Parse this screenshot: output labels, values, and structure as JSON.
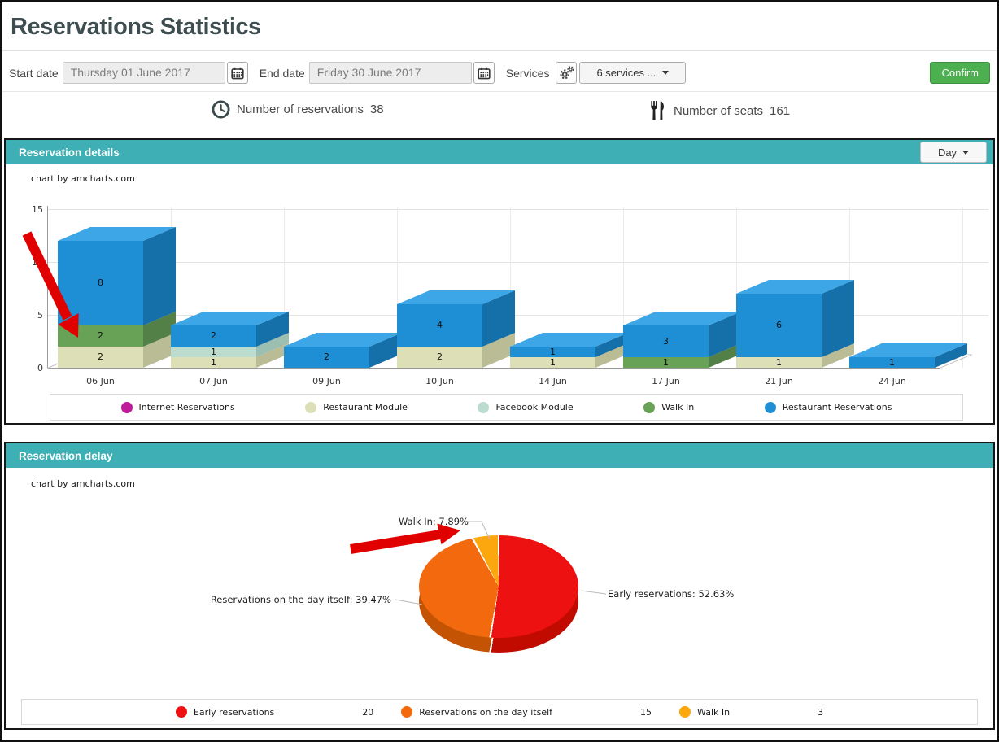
{
  "page": {
    "title": "Reservations Statistics"
  },
  "filters": {
    "start_date": {
      "label": "Start date",
      "value": "Thursday 01 June 2017"
    },
    "end_date": {
      "label": "End date",
      "value": "Friday 30 June 2017"
    },
    "services": {
      "label": "Services",
      "dropdown_value": "6 services ..."
    },
    "confirm_label": "Confirm"
  },
  "stats": {
    "reservations": {
      "label": "Number of reservations",
      "value": "38"
    },
    "seats": {
      "label": "Number of seats",
      "value": "161"
    }
  },
  "panels": {
    "details": {
      "title": "Reservation details",
      "day_dropdown": "Day",
      "watermark": "chart by amcharts.com"
    },
    "delay": {
      "title": "Reservation delay",
      "watermark": "chart by amcharts.com"
    }
  },
  "chart_data": [
    {
      "type": "bar",
      "style": "3d-stacked-columns",
      "title": "Reservation details",
      "categories": [
        "06 Jun",
        "07 Jun",
        "09 Jun",
        "10 Jun",
        "14 Jun",
        "17 Jun",
        "21 Jun",
        "24 Jun"
      ],
      "series": [
        {
          "name": "Internet Reservations",
          "color": "#C01B9B",
          "top": "#D13FB0",
          "side": "#9A157C",
          "values": [
            0,
            0,
            0,
            0,
            0,
            0,
            0,
            0
          ]
        },
        {
          "name": "Restaurant Module",
          "color": "#DDDFB6",
          "top": "#E9EBCB",
          "side": "#BABC95",
          "values": [
            2,
            1,
            0,
            2,
            1,
            0,
            1,
            0
          ]
        },
        {
          "name": "Facebook Module",
          "color": "#BBDCCE",
          "top": "#D0EBE0",
          "side": "#9CBFB1",
          "values": [
            0,
            1,
            0,
            0,
            0,
            0,
            0,
            0
          ]
        },
        {
          "name": "Walk In",
          "color": "#68A257",
          "top": "#7DB46C",
          "side": "#528046",
          "values": [
            2,
            0,
            0,
            0,
            0,
            1,
            0,
            0
          ]
        },
        {
          "name": "Restaurant Reservations",
          "color": "#1E8FD5",
          "top": "#3DA6E7",
          "side": "#156FA8",
          "values": [
            8,
            2,
            2,
            4,
            1,
            3,
            6,
            1
          ]
        }
      ],
      "totals": [
        12,
        4,
        2,
        6,
        2,
        4,
        7,
        1
      ],
      "ylim": [
        0,
        15
      ],
      "yticks": [
        0,
        5,
        10,
        15
      ],
      "grid": true,
      "legend_position": "bottom"
    },
    {
      "type": "pie",
      "style": "3d",
      "title": "Reservation delay",
      "start_angle": "top",
      "direction": "clockwise",
      "slices": [
        {
          "label": "Early reservations",
          "value": 20,
          "percent": 52.63,
          "label_text": "Early reservations: 52.63%",
          "color": "#EE1111",
          "side_color": "#C20B00"
        },
        {
          "label": "Reservations on the day itself",
          "value": 15,
          "percent": 39.47,
          "label_text": "Reservations on the day itself: 39.47%",
          "color": "#F26A0D",
          "side_color": "#C45304"
        },
        {
          "label": "Walk In",
          "value": 3,
          "percent": 7.89,
          "label_text": "Walk In: 7.89%",
          "color": "#FBA70D",
          "side_color": "#D68B04"
        }
      ],
      "legend_position": "bottom"
    }
  ],
  "annotations": {
    "arrow_color": "#E10000",
    "count": 2
  },
  "icons": {
    "calendar": "calendar-icon",
    "services": "gears-icon",
    "reservations": "clock-icon",
    "seats": "utensils-icon",
    "dropdown": "caret-down-icon"
  },
  "colors": {
    "panel_header": "#3DAFB5",
    "confirm_green": "#4CAF50",
    "title_text": "#3E4E50",
    "watermark_text": "#1A1A1A"
  }
}
